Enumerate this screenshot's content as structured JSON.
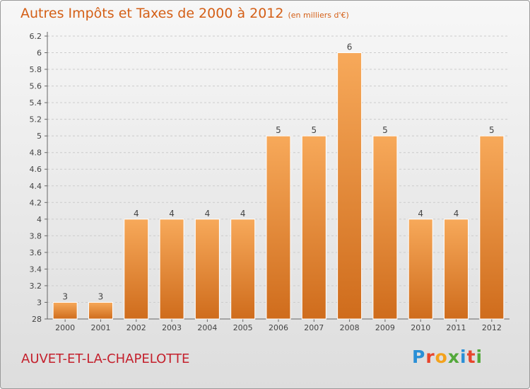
{
  "header": {
    "title": "Autres Impôts et Taxes de 2000 à 2012",
    "subtitle": "(en milliers d'€)"
  },
  "footer": {
    "commune": "AUVET-ET-LA-CHAPELOTTE",
    "logo": "Proxiti",
    "logo_colors": [
      "#2a8fd6",
      "#e8452c",
      "#f4a21c",
      "#53a83a",
      "#2a8fd6",
      "#e8452c",
      "#53a83a"
    ]
  },
  "colors": {
    "title": "#d45f16",
    "commune": "#c4202c",
    "bar_top": "#f7a95a",
    "bar_bottom": "#cf6c1c",
    "grid": "#cccccc"
  },
  "chart_data": {
    "type": "bar",
    "categories": [
      "2000",
      "2001",
      "2002",
      "2003",
      "2004",
      "2005",
      "2006",
      "2007",
      "2008",
      "2009",
      "2010",
      "2011",
      "2012"
    ],
    "values": [
      3,
      3,
      4,
      4,
      4,
      4,
      5,
      5,
      6,
      5,
      4,
      4,
      5
    ],
    "data_labels": [
      "3",
      "3",
      "4",
      "4",
      "4",
      "4",
      "5",
      "5",
      "6",
      "5",
      "4",
      "4",
      "5"
    ],
    "yticks": [
      "28",
      "3",
      "3.2",
      "3.4",
      "3.6",
      "3.8",
      "4",
      "4.2",
      "4.4",
      "4.6",
      "4.8",
      "5",
      "5.2",
      "5.4",
      "5.6",
      "5.8",
      "6",
      "6.2"
    ],
    "grid": true,
    "xlabel": "",
    "ylabel": ""
  }
}
